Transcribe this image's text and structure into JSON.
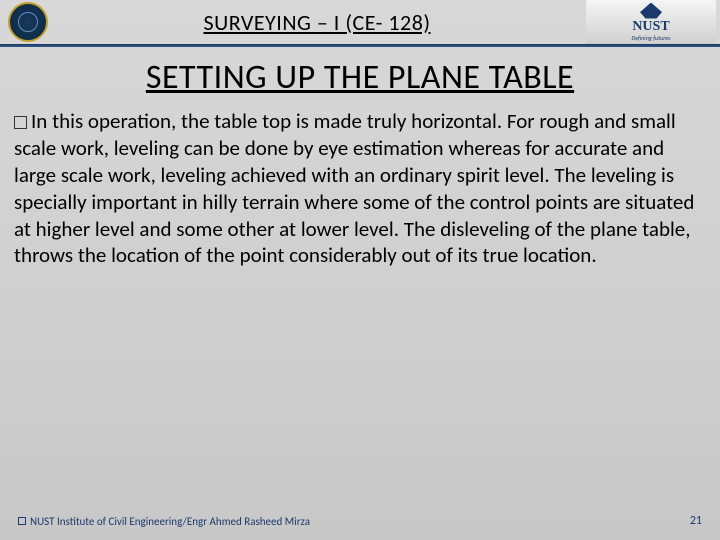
{
  "header": {
    "course_title": "SURVEYING – I (CE- 128)",
    "org_name": "NUST",
    "org_tagline": "Defining futures"
  },
  "content": {
    "main_title": "SETTING UP THE PLANE TABLE",
    "body": "In this operation, the table top is made truly horizontal. For rough and small scale work, leveling can be done by eye estimation whereas for accurate and large scale work, leveling achieved with an ordinary spirit level. The leveling is specially important in hilly terrain where some of the control points are situated at higher level and some other at lower level. The disleveling of the plane table, throws the location of the point considerably out of its true location."
  },
  "footer": {
    "attribution": "NUST Institute of Civil Engineering/Engr Ahmed Rasheed Mirza",
    "page_number": "21"
  },
  "colors": {
    "divider": "#2a5080",
    "accent": "#1a3a6c",
    "bg_top": "#d8d8d8",
    "bg_bottom": "#c8c8c8"
  }
}
